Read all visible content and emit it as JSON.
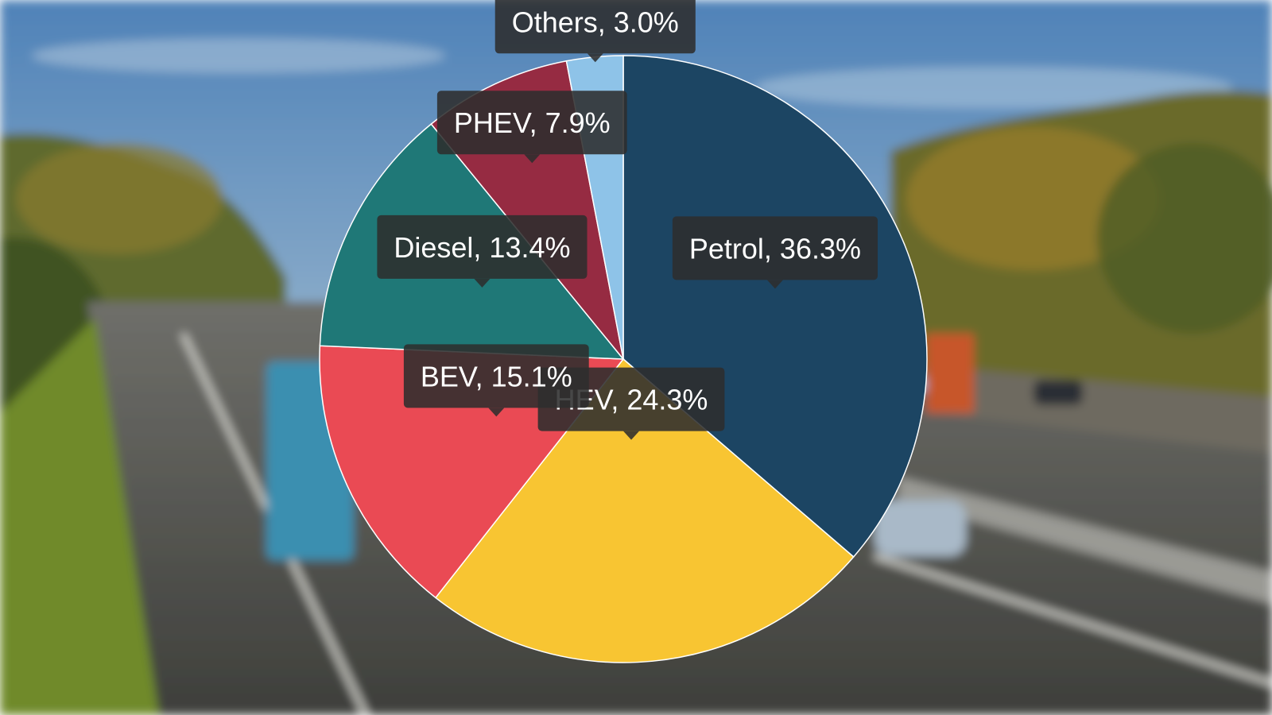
{
  "chart_data": {
    "type": "pie",
    "title": "",
    "start": "12 o'clock",
    "direction": "clockwise",
    "slices": [
      {
        "name": "Petrol",
        "value": 36.3,
        "label": "Petrol, 36.3%",
        "color": "#1c4563"
      },
      {
        "name": "HEV",
        "value": 24.3,
        "label": "HEV, 24.3%",
        "color": "#f8c532"
      },
      {
        "name": "BEV",
        "value": 15.1,
        "label": "BEV, 15.1%",
        "color": "#ea4a54"
      },
      {
        "name": "Diesel",
        "value": 13.4,
        "label": "Diesel, 13.4%",
        "color": "#1f7877"
      },
      {
        "name": "PHEV",
        "value": 7.9,
        "label": "PHEV, 7.9%",
        "color": "#962b42"
      },
      {
        "name": "Others",
        "value": 3.0,
        "label": "Others, 3.0%",
        "color": "#8ec3e8"
      }
    ],
    "legend": "none",
    "background": "blurred photo of a highway with trucks, cars and autumn trees"
  }
}
